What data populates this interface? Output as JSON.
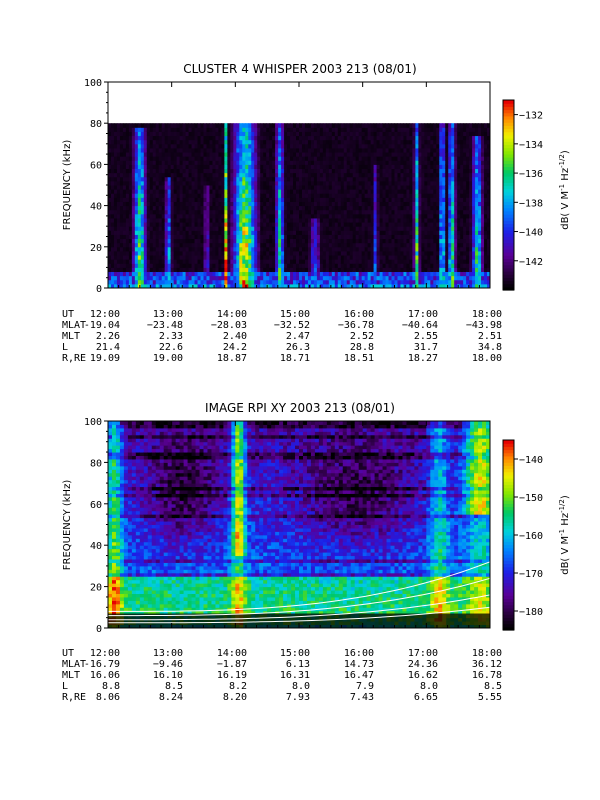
{
  "chart_data": [
    {
      "type": "heatmap",
      "id": "top",
      "title": "CLUSTER 4 WHISPER 2003 213 (08/01)",
      "ylabel": "FREQUENCY (kHz)",
      "ylim": [
        0,
        100
      ],
      "yticks": [
        0,
        20,
        40,
        60,
        80,
        100
      ],
      "data_upper_freq": 80,
      "colorbar": {
        "label": "dB( V M⁻¹ Hz⁻¹ᐟ²)",
        "label_base": "dB( V M",
        "label_sup1": "-1",
        "label_mid": " Hz",
        "label_sup2": "-1/2",
        "label_end": ")",
        "range": [
          -144,
          -131
        ],
        "ticks": [
          -132,
          -134,
          -136,
          -138,
          -140,
          -142
        ]
      },
      "x": {
        "ticks": [
          "12:00",
          "13:00",
          "14:00",
          "15:00",
          "16:00",
          "17:00",
          "18:00"
        ]
      },
      "bursts": [
        {
          "t": 12.5,
          "top": 78,
          "w": 0.12,
          "s": 0.75
        },
        {
          "t": 12.95,
          "top": 55,
          "w": 0.06,
          "s": 0.55
        },
        {
          "t": 13.55,
          "top": 50,
          "w": 0.04,
          "s": 0.45
        },
        {
          "t": 13.85,
          "top": 80,
          "w": 0.03,
          "s": 0.95
        },
        {
          "t": 14.15,
          "top": 80,
          "w": 0.22,
          "s": 0.9
        },
        {
          "t": 14.7,
          "top": 80,
          "w": 0.08,
          "s": 0.65
        },
        {
          "t": 15.25,
          "top": 35,
          "w": 0.1,
          "s": 0.4
        },
        {
          "t": 16.2,
          "top": 60,
          "w": 0.05,
          "s": 0.4
        },
        {
          "t": 16.85,
          "top": 80,
          "w": 0.05,
          "s": 0.7
        },
        {
          "t": 17.25,
          "top": 80,
          "w": 0.05,
          "s": 0.75
        },
        {
          "t": 17.4,
          "top": 80,
          "w": 0.07,
          "s": 0.7
        },
        {
          "t": 17.8,
          "top": 75,
          "w": 0.1,
          "s": 0.65
        }
      ],
      "ephemeris": {
        "labels": [
          "UT",
          "MLAT",
          "MLT",
          "L",
          "R,RE"
        ],
        "rows": [
          [
            "12:00",
            "13:00",
            "14:00",
            "15:00",
            "16:00",
            "17:00",
            "18:00"
          ],
          [
            "-19.04",
            "−23.48",
            "−28.03",
            "−32.52",
            "−36.78",
            "−40.64",
            "−43.98"
          ],
          [
            "2.26",
            "2.33",
            "2.40",
            "2.47",
            "2.52",
            "2.55",
            "2.51"
          ],
          [
            "21.4",
            "22.6",
            "24.2",
            "26.3",
            "28.8",
            "31.7",
            "34.8"
          ],
          [
            "19.09",
            "19.00",
            "18.87",
            "18.71",
            "18.51",
            "18.27",
            "18.00"
          ]
        ]
      }
    },
    {
      "type": "heatmap",
      "id": "bottom",
      "title": "IMAGE RPI XY 2003 213 (08/01)",
      "ylabel": "FREQUENCY (kHz)",
      "ylim": [
        0,
        100
      ],
      "yticks": [
        0,
        20,
        40,
        60,
        80,
        100
      ],
      "colorbar": {
        "label_base": "dB( V M",
        "label_sup1": "-1",
        "label_mid": " Hz",
        "label_sup2": "-1/2",
        "label_end": ")",
        "range": [
          -185,
          -135
        ],
        "ticks": [
          -140,
          -150,
          -160,
          -170,
          -180
        ]
      },
      "x": {
        "ticks": [
          "12:00",
          "13:00",
          "14:00",
          "15:00",
          "16:00",
          "17:00",
          "18:00"
        ]
      },
      "curves": [
        {
          "f0": 2.5,
          "f1": 10
        },
        {
          "f0": 4,
          "f1": 16
        },
        {
          "f0": 6,
          "f1": 24
        },
        {
          "f0": 8,
          "f1": 32
        }
      ],
      "ephemeris": {
        "labels": [
          "UT",
          "MLAT",
          "MLT",
          "L",
          "R,RE"
        ],
        "rows": [
          [
            "12:00",
            "13:00",
            "14:00",
            "15:00",
            "16:00",
            "17:00",
            "18:00"
          ],
          [
            "-16.79",
            "−9.46",
            "−1.87",
            "6.13",
            "14.73",
            "24.36",
            "36.12"
          ],
          [
            "16.06",
            "16.10",
            "16.19",
            "16.31",
            "16.47",
            "16.62",
            "16.78"
          ],
          [
            "8.8",
            "8.5",
            "8.2",
            "8.0",
            "7.9",
            "8.0",
            "8.5"
          ],
          [
            "8.06",
            "8.24",
            "8.20",
            "7.93",
            "7.43",
            "6.65",
            "5.55"
          ]
        ]
      }
    }
  ]
}
